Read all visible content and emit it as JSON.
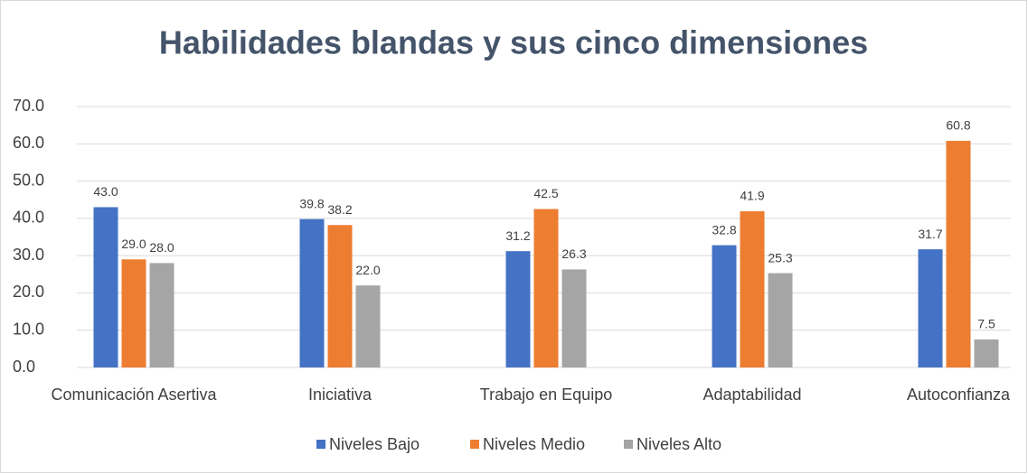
{
  "chart_data": {
    "type": "bar",
    "title": "Habilidades blandas y sus cinco dimensiones",
    "categories": [
      "Comunicación Asertiva",
      "Iniciativa",
      "Trabajo en Equipo",
      "Adaptabilidad",
      "Autoconfianza"
    ],
    "series": [
      {
        "name": "Niveles Bajo",
        "color": "#4472c4",
        "values": [
          43,
          39.8,
          31.2,
          32.8,
          31.7
        ],
        "value_labels": [
          "43.0",
          "39.8",
          "31.2",
          "32.8",
          "31.7"
        ]
      },
      {
        "name": "Niveles Medio",
        "color": "#ed7d31",
        "values": [
          29,
          38.2,
          42.5,
          41.9,
          60.8
        ],
        "value_labels": [
          "29.0",
          "38.2",
          "42.5",
          "41.9",
          "60.8"
        ]
      },
      {
        "name": "Niveles Alto",
        "color": "#a5a5a5",
        "values": [
          28,
          22,
          26.3,
          25.3,
          7.5
        ],
        "value_labels": [
          "28.0",
          "22.0",
          "26.3",
          "25.3",
          "7.5"
        ]
      }
    ],
    "ylim": [
      0,
      70
    ],
    "yticks": [
      {
        "value": 0,
        "label": "0.0"
      },
      {
        "value": 10,
        "label": "10.0"
      },
      {
        "value": 20,
        "label": "20.0"
      },
      {
        "value": 30,
        "label": "30.0"
      },
      {
        "value": 40,
        "label": "40.0"
      },
      {
        "value": 50,
        "label": "50.0"
      },
      {
        "value": 60,
        "label": "60.0"
      },
      {
        "value": 70,
        "label": "70.0"
      }
    ],
    "grid": true,
    "legend": "bottom"
  }
}
